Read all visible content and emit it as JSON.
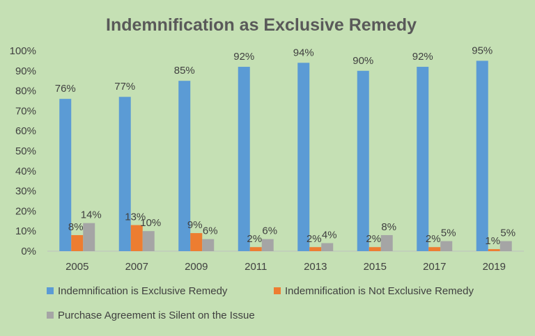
{
  "chart_data": {
    "type": "bar",
    "title": "Indemnification as Exclusive Remedy",
    "categories": [
      "2005",
      "2007",
      "2009",
      "2011",
      "2013",
      "2015",
      "2017",
      "2019"
    ],
    "series": [
      {
        "name": "Indemnification is Exclusive Remedy",
        "color": "#5b9bd5",
        "values": [
          76,
          77,
          85,
          92,
          94,
          90,
          92,
          95
        ],
        "labels": [
          "76%",
          "77%",
          "85%",
          "92%",
          "94%",
          "90%",
          "92%",
          "95%"
        ]
      },
      {
        "name": "Indemnification is Not Exclusive Remedy",
        "color": "#ed7d31",
        "values": [
          8,
          13,
          9,
          2,
          2,
          2,
          2,
          1
        ],
        "labels": [
          "8%",
          "13%",
          "9%",
          "2%",
          "2%",
          "2%",
          "2%",
          "1%"
        ]
      },
      {
        "name": "Purchase Agreement is Silent on the Issue",
        "color": "#a5a5a5",
        "values": [
          14,
          10,
          6,
          6,
          4,
          8,
          5,
          5
        ],
        "labels": [
          "14%",
          "10%",
          "6%",
          "6%",
          "4%",
          "8%",
          "5%",
          "5%"
        ]
      }
    ],
    "ylim": [
      0,
      100
    ],
    "yticks": [
      "0%",
      "10%",
      "20%",
      "30%",
      "40%",
      "50%",
      "60%",
      "70%",
      "80%",
      "90%",
      "100%"
    ],
    "grid": false,
    "legend_position": "bottom"
  }
}
